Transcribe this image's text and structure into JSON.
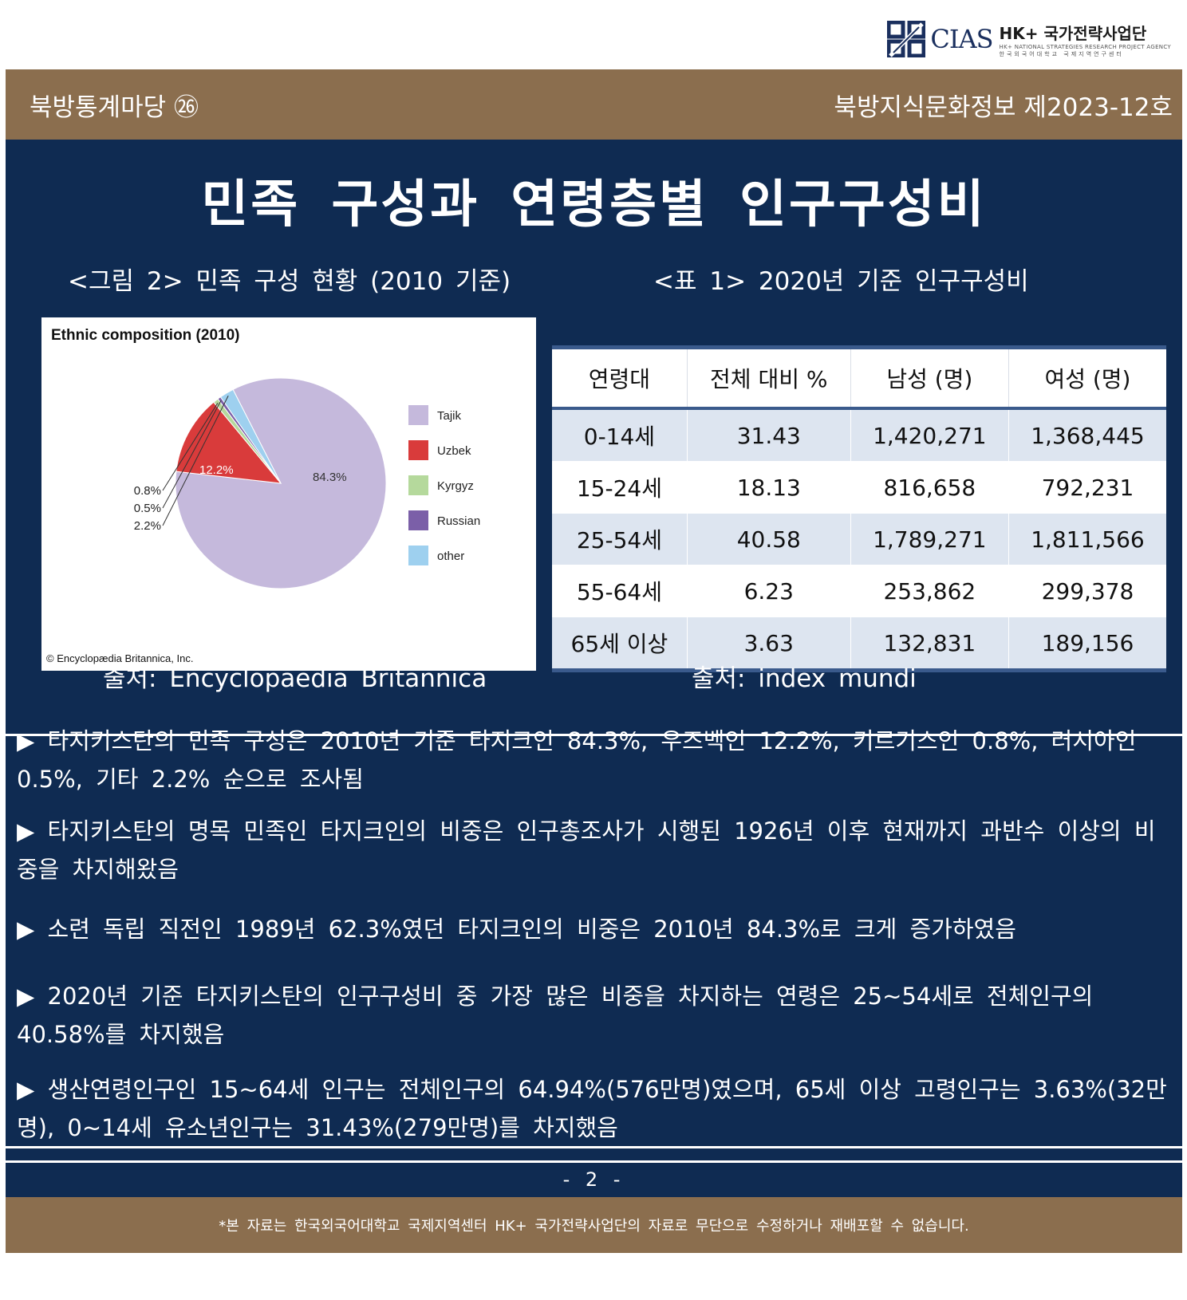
{
  "logo": {
    "cias": "CIAS",
    "hk": "HK+ 국가전략사업단",
    "sub1": "HK+ NATIONAL STRATEGIES RESEARCH PROJECT AGENCY",
    "sub2": "한국외국어대학교 국제지역연구센터"
  },
  "header": {
    "series": "북방통계마당 ㉖",
    "issue": "북방지식문화정보 제2023-12호"
  },
  "title": "민족 구성과 연령층별 인구구성비",
  "figure": {
    "caption": "<그림 2> 민족 구성 현황 (2010 기준)",
    "source": "출처: Encyclopaedia Britannica",
    "credit": "© Encyclopædia Britannica, Inc."
  },
  "chart_data": {
    "type": "pie",
    "title": "Ethnic composition (2010)",
    "slices": [
      {
        "name": "Tajik",
        "value": 84.3,
        "label": "84.3%",
        "color": "#c5b9dc"
      },
      {
        "name": "Uzbek",
        "value": 12.2,
        "label": "12.2%",
        "color": "#d93b3b"
      },
      {
        "name": "Kyrgyz",
        "value": 0.8,
        "label": "0.8%",
        "color": "#b5d99c"
      },
      {
        "name": "Russian",
        "value": 0.5,
        "label": "0.5%",
        "color": "#7b5fa8"
      },
      {
        "name": "other",
        "value": 2.2,
        "label": "2.2%",
        "color": "#9ed0ef"
      }
    ],
    "legend": "right"
  },
  "table": {
    "caption": "<표 1> 2020년 기준 인구구성비",
    "source": "출처: index mundi",
    "headers": [
      "연령대",
      "전체 대비 %",
      "남성 (명)",
      "여성 (명)"
    ],
    "rows": [
      [
        "0-14세",
        "31.43",
        "1,420,271",
        "1,368,445"
      ],
      [
        "15-24세",
        "18.13",
        "816,658",
        "792,231"
      ],
      [
        "25-54세",
        "40.58",
        "1,789,271",
        "1,811,566"
      ],
      [
        "55-64세",
        "6.23",
        "253,862",
        "299,378"
      ],
      [
        "65세 이상",
        "3.63",
        "132,831",
        "189,156"
      ]
    ]
  },
  "paragraphs": [
    "▶ 타지키스탄의 민족 구성은 2010년 기준 타지크인 84.3%, 우즈벡인 12.2%, 키르기스인 0.8%, 러시아인 0.5%, 기타 2.2% 순으로 조사됨",
    "▶ 타지키스탄의 명목 민족인 타지크인의 비중은 인구총조사가 시행된 1926년 이후 현재까지 과반수 이상의 비중을 차지해왔음",
    "▶ 소련 독립 직전인 1989년 62.3%였던 타지크인의 비중은 2010년 84.3%로 크게 증가하였음",
    "▶ 2020년 기준 타지키스탄의 인구구성비 중 가장 많은 비중을 차지하는 연령은 25~54세로 전체인구의 40.58%를 차지했음",
    "▶ 생산연령인구인 15~64세 인구는 전체인구의 64.94%(576만명)였으며, 65세 이상 고령인구는 3.63%(32만명), 0~14세 유소년인구는 31.43%(279만명)를 차지했음"
  ],
  "page_number": "- 2 -",
  "footer": "*본 자료는 한국외국어대학교 국제지역센터 HK+ 국가전략사업단의 자료로 무단으로 수정하거나 재배포할 수 없습니다."
}
